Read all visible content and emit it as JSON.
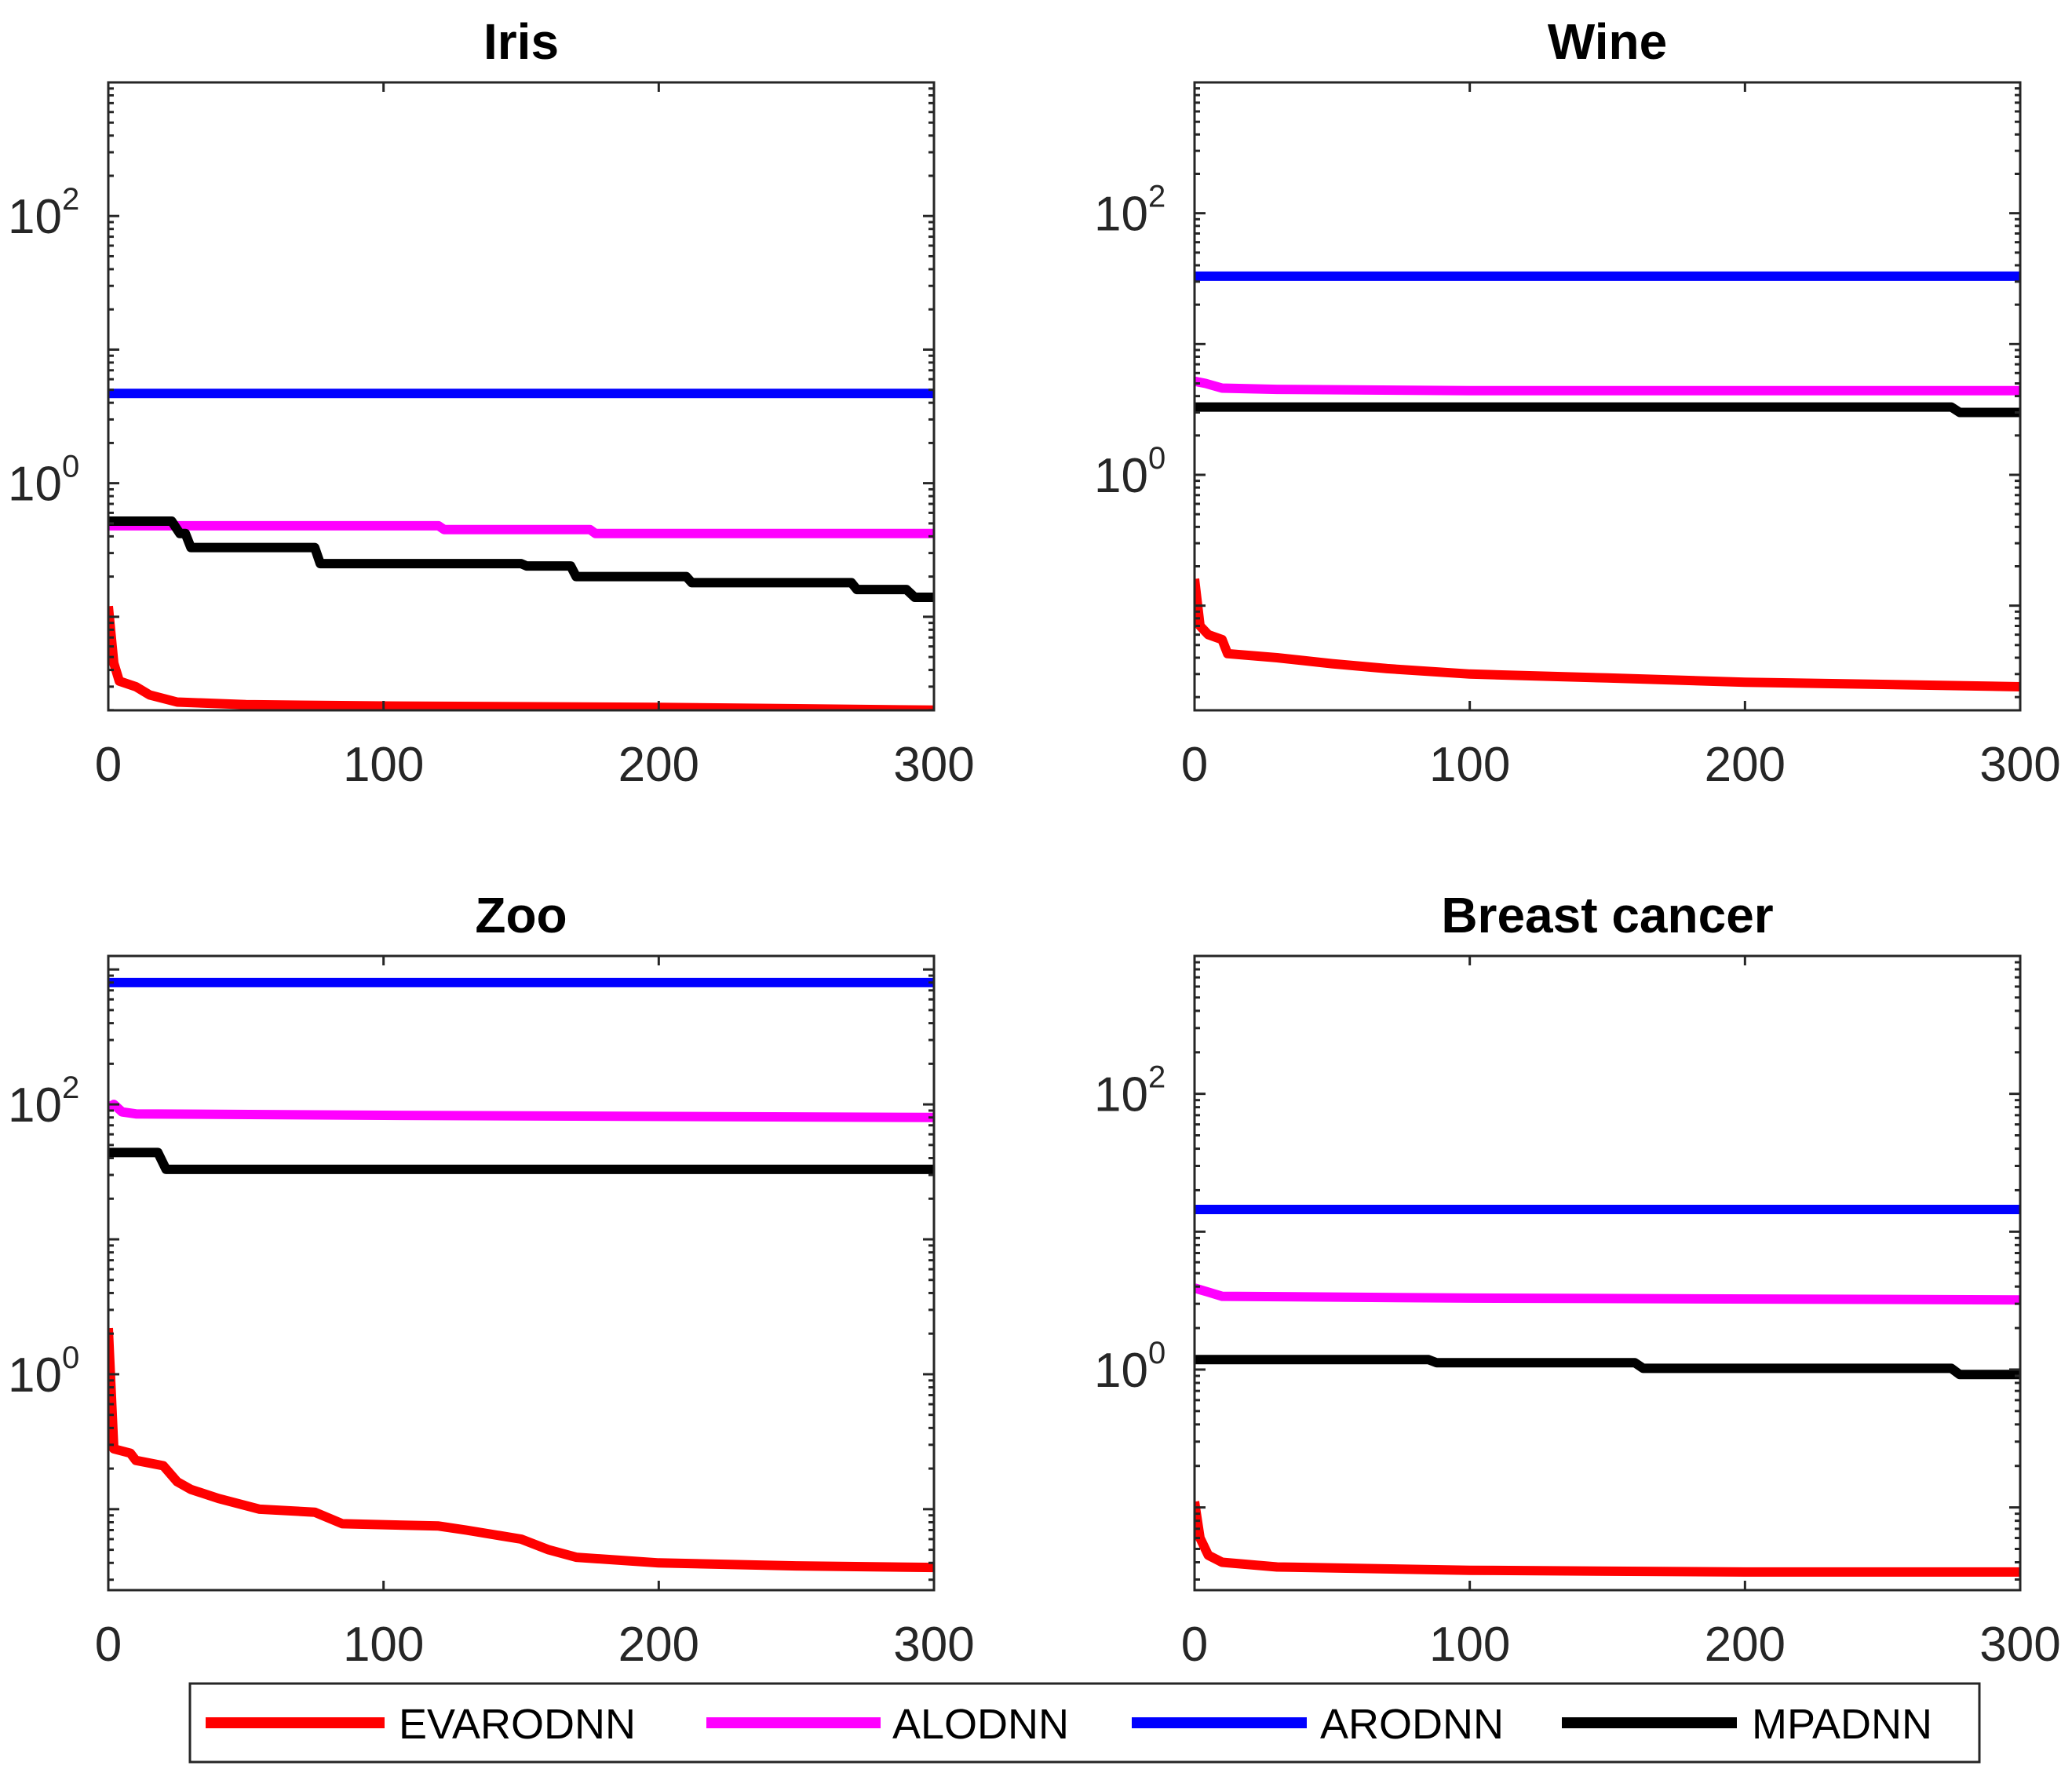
{
  "legend": {
    "entries": [
      {
        "label": "EVARODNN",
        "color": "#ff0000"
      },
      {
        "label": "ALODNN",
        "color": "#ff00ff"
      },
      {
        "label": "ARODNN",
        "color": "#0000ff"
      },
      {
        "label": "MPADNN",
        "color": "#000000"
      }
    ]
  },
  "chart_data": [
    {
      "type": "line",
      "title": "Iris",
      "xlabel": "",
      "ylabel": "",
      "xlim": [
        0,
        300
      ],
      "xticks": [
        0,
        100,
        200,
        300
      ],
      "yscale": "log",
      "ylim_log10": [
        -1.7,
        3
      ],
      "yticks": [
        {
          "base": "10",
          "exp": "2",
          "log": 2
        },
        {
          "base": "10",
          "exp": "0",
          "log": 0
        }
      ],
      "series": [
        {
          "name": "ARODNN",
          "color": "#0000ff",
          "points": [
            [
              0,
              4.7
            ],
            [
              300,
              4.7
            ]
          ]
        },
        {
          "name": "ALODNN",
          "color": "#ff00ff",
          "points": [
            [
              0,
              0.48
            ],
            [
              120,
              0.48
            ],
            [
              122,
              0.45
            ],
            [
              175,
              0.45
            ],
            [
              177,
              0.42
            ],
            [
              300,
              0.42
            ]
          ]
        },
        {
          "name": "MPADNN",
          "color": "#000000",
          "points": [
            [
              0,
              0.52
            ],
            [
              23,
              0.52
            ],
            [
              26,
              0.42
            ],
            [
              28,
              0.42
            ],
            [
              30,
              0.33
            ],
            [
              75,
              0.33
            ],
            [
              77,
              0.25
            ],
            [
              150,
              0.25
            ],
            [
              152,
              0.24
            ],
            [
              168,
              0.24
            ],
            [
              170,
              0.2
            ],
            [
              210,
              0.2
            ],
            [
              212,
              0.18
            ],
            [
              270,
              0.18
            ],
            [
              272,
              0.16
            ],
            [
              290,
              0.16
            ],
            [
              293,
              0.14
            ],
            [
              300,
              0.14
            ]
          ]
        },
        {
          "name": "EVARODNN",
          "color": "#ff0000",
          "points": [
            [
              0,
              0.12
            ],
            [
              2,
              0.045
            ],
            [
              4,
              0.033
            ],
            [
              10,
              0.03
            ],
            [
              15,
              0.026
            ],
            [
              25,
              0.023
            ],
            [
              50,
              0.022
            ],
            [
              100,
              0.0215
            ],
            [
              200,
              0.021
            ],
            [
              300,
              0.02
            ]
          ]
        }
      ]
    },
    {
      "type": "line",
      "title": "Wine",
      "xlabel": "",
      "ylabel": "",
      "xlim": [
        0,
        300
      ],
      "xticks": [
        0,
        100,
        200,
        300
      ],
      "yscale": "log",
      "ylim_log10": [
        -1.8,
        3
      ],
      "yticks": [
        {
          "base": "10",
          "exp": "2",
          "log": 2
        },
        {
          "base": "10",
          "exp": "0",
          "log": 0
        }
      ],
      "series": [
        {
          "name": "ARODNN",
          "color": "#0000ff",
          "points": [
            [
              0,
              33
            ],
            [
              300,
              33
            ]
          ]
        },
        {
          "name": "ALODNN",
          "color": "#ff00ff",
          "points": [
            [
              0,
              5.2
            ],
            [
              4,
              5.0
            ],
            [
              10,
              4.6
            ],
            [
              30,
              4.5
            ],
            [
              100,
              4.4
            ],
            [
              300,
              4.4
            ]
          ]
        },
        {
          "name": "MPADNN",
          "color": "#000000",
          "points": [
            [
              0,
              3.3
            ],
            [
              275,
              3.3
            ],
            [
              278,
              3.0
            ],
            [
              300,
              3.0
            ]
          ]
        },
        {
          "name": "EVARODNN",
          "color": "#ff0000",
          "points": [
            [
              0,
              0.16
            ],
            [
              2,
              0.07
            ],
            [
              5,
              0.06
            ],
            [
              10,
              0.055
            ],
            [
              12,
              0.043
            ],
            [
              30,
              0.04
            ],
            [
              50,
              0.036
            ],
            [
              70,
              0.033
            ],
            [
              100,
              0.03
            ],
            [
              150,
              0.028
            ],
            [
              200,
              0.026
            ],
            [
              250,
              0.025
            ],
            [
              300,
              0.024
            ]
          ]
        }
      ]
    },
    {
      "type": "line",
      "title": "Zoo",
      "xlabel": "",
      "ylabel": "",
      "xlim": [
        0,
        300
      ],
      "xticks": [
        0,
        100,
        200,
        300
      ],
      "yscale": "log",
      "ylim_log10": [
        -1.6,
        3.1
      ],
      "yticks": [
        {
          "base": "10",
          "exp": "2",
          "log": 2
        },
        {
          "base": "10",
          "exp": "0",
          "log": 0
        }
      ],
      "series": [
        {
          "name": "ARODNN",
          "color": "#0000ff",
          "points": [
            [
              0,
              800
            ],
            [
              300,
              800
            ]
          ]
        },
        {
          "name": "ALODNN",
          "color": "#ff00ff",
          "points": [
            [
              0,
              95
            ],
            [
              2,
              100
            ],
            [
              5,
              88
            ],
            [
              10,
              85
            ],
            [
              100,
              83
            ],
            [
              300,
              80
            ]
          ]
        },
        {
          "name": "MPADNN",
          "color": "#000000",
          "points": [
            [
              0,
              44
            ],
            [
              18,
              44
            ],
            [
              21,
              33
            ],
            [
              300,
              33
            ]
          ]
        },
        {
          "name": "EVARODNN",
          "color": "#ff0000",
          "points": [
            [
              0,
              2.2
            ],
            [
              2,
              0.28
            ],
            [
              8,
              0.26
            ],
            [
              10,
              0.23
            ],
            [
              20,
              0.21
            ],
            [
              25,
              0.16
            ],
            [
              30,
              0.14
            ],
            [
              40,
              0.12
            ],
            [
              55,
              0.1
            ],
            [
              75,
              0.095
            ],
            [
              85,
              0.078
            ],
            [
              120,
              0.075
            ],
            [
              130,
              0.07
            ],
            [
              150,
              0.06
            ],
            [
              160,
              0.05
            ],
            [
              170,
              0.044
            ],
            [
              200,
              0.04
            ],
            [
              250,
              0.038
            ],
            [
              300,
              0.037
            ]
          ]
        }
      ]
    },
    {
      "type": "line",
      "title": "Breast cancer",
      "xlabel": "",
      "ylabel": "",
      "xlim": [
        0,
        300
      ],
      "xticks": [
        0,
        100,
        200,
        300
      ],
      "yscale": "log",
      "ylim_log10": [
        -1.6,
        3
      ],
      "yticks": [
        {
          "base": "10",
          "exp": "2",
          "log": 2
        },
        {
          "base": "10",
          "exp": "0",
          "log": 0
        }
      ],
      "series": [
        {
          "name": "ARODNN",
          "color": "#0000ff",
          "points": [
            [
              0,
              14.5
            ],
            [
              300,
              14.5
            ]
          ]
        },
        {
          "name": "ALODNN",
          "color": "#ff00ff",
          "points": [
            [
              0,
              3.9
            ],
            [
              4,
              3.7
            ],
            [
              10,
              3.4
            ],
            [
              100,
              3.3
            ],
            [
              300,
              3.2
            ]
          ]
        },
        {
          "name": "MPADNN",
          "color": "#000000",
          "points": [
            [
              0,
              1.18
            ],
            [
              85,
              1.18
            ],
            [
              88,
              1.12
            ],
            [
              160,
              1.12
            ],
            [
              163,
              1.02
            ],
            [
              275,
              1.02
            ],
            [
              278,
              0.92
            ],
            [
              300,
              0.92
            ]
          ]
        },
        {
          "name": "EVARODNN",
          "color": "#ff0000",
          "points": [
            [
              0,
              0.11
            ],
            [
              2,
              0.06
            ],
            [
              5,
              0.045
            ],
            [
              10,
              0.04
            ],
            [
              30,
              0.037
            ],
            [
              100,
              0.035
            ],
            [
              200,
              0.034
            ],
            [
              300,
              0.034
            ]
          ]
        }
      ]
    }
  ]
}
